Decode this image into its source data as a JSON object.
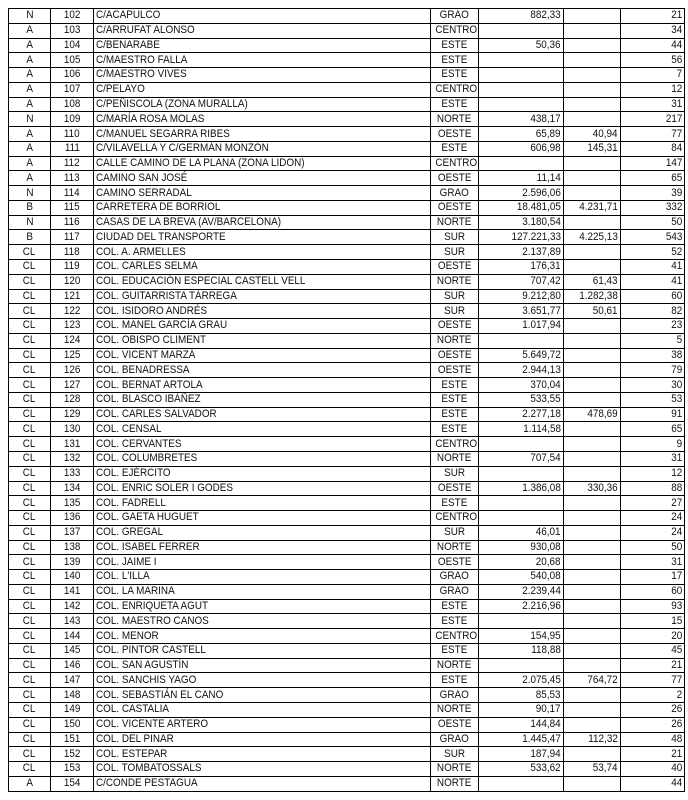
{
  "rows": [
    [
      "N",
      "102",
      "C/ACAPULCO",
      "GRAO",
      "882,33",
      "",
      "21"
    ],
    [
      "A",
      "103",
      "C/ARRUFAT ALONSO",
      "CENTRO",
      "",
      "",
      "34"
    ],
    [
      "A",
      "104",
      "C/BENARABE",
      "ESTE",
      "50,36",
      "",
      "44"
    ],
    [
      "A",
      "105",
      "C/MAESTRO FALLA",
      "ESTE",
      "",
      "",
      "56"
    ],
    [
      "A",
      "106",
      "C/MAESTRO VIVES",
      "ESTE",
      "",
      "",
      "7"
    ],
    [
      "A",
      "107",
      "C/PELAYO",
      "CENTRO",
      "",
      "",
      "12"
    ],
    [
      "A",
      "108",
      "C/PEÑISCOLA (ZONA MURALLA)",
      "ESTE",
      "",
      "",
      "31"
    ],
    [
      "N",
      "109",
      "C/MARÍA ROSA MOLAS",
      "NORTE",
      "438,17",
      "",
      "217"
    ],
    [
      "A",
      "110",
      "C/MANUEL SEGARRA RIBES",
      "OESTE",
      "65,89",
      "40,94",
      "77"
    ],
    [
      "A",
      "111",
      "C/VILAVELLA Y C/GERMÁN MONZÓN",
      "ESTE",
      "606,98",
      "145,31",
      "84"
    ],
    [
      "A",
      "112",
      "CALLE CAMINO DE LA PLANA (ZONA LIDON)",
      "CENTRO",
      "",
      "",
      "147"
    ],
    [
      "A",
      "113",
      "CAMINO SAN JOSÉ",
      "OESTE",
      "11,14",
      "",
      "65"
    ],
    [
      "N",
      "114",
      "CAMINO SERRADAL",
      "GRAO",
      "2.596,06",
      "",
      "39"
    ],
    [
      "B",
      "115",
      "CARRETERA DE BORRIOL",
      "OESTE",
      "18.481,05",
      "4.231,71",
      "332"
    ],
    [
      "N",
      "116",
      "CASAS DE LA BREVA (AV/BARCELONA)",
      "NORTE",
      "3.180,54",
      "",
      "50"
    ],
    [
      "B",
      "117",
      "CIUDAD DEL TRANSPORTE",
      "SUR",
      "127.221,33",
      "4.225,13",
      "543"
    ],
    [
      "CL",
      "118",
      "COL. A. ARMELLES",
      "SUR",
      "2.137,89",
      "",
      "52"
    ],
    [
      "CL",
      "119",
      "COL. CARLES SELMA",
      "OESTE",
      "176,31",
      "",
      "41"
    ],
    [
      "CL",
      "120",
      "COL. EDUCACIÓN ESPECIAL CASTELL VELL",
      "NORTE",
      "707,42",
      "61,43",
      "41"
    ],
    [
      "CL",
      "121",
      "COL. GUITARRISTA TÁRREGA",
      "SUR",
      "9.212,80",
      "1.282,38",
      "60"
    ],
    [
      "CL",
      "122",
      "COL. ISIDORO ANDRÉS",
      "SUR",
      "3.651,77",
      "50,61",
      "82"
    ],
    [
      "CL",
      "123",
      "COL. MANEL GARCÍA GRAU",
      "OESTE",
      "1.017,94",
      "",
      "23"
    ],
    [
      "CL",
      "124",
      "COL. OBISPO CLIMENT",
      "NORTE",
      "",
      "",
      "5"
    ],
    [
      "CL",
      "125",
      "COL. VICENT MARZÁ",
      "OESTE",
      "5.649,72",
      "",
      "38"
    ],
    [
      "CL",
      "126",
      "COL. BENADRESSA",
      "OESTE",
      "2.944,13",
      "",
      "79"
    ],
    [
      "CL",
      "127",
      "COL. BERNAT ARTOLA",
      "ESTE",
      "370,04",
      "",
      "30"
    ],
    [
      "CL",
      "128",
      "COL. BLASCO IBÁÑEZ",
      "ESTE",
      "533,55",
      "",
      "53"
    ],
    [
      "CL",
      "129",
      "COL. CARLES SALVADOR",
      "ESTE",
      "2.277,18",
      "478,69",
      "91"
    ],
    [
      "CL",
      "130",
      "COL. CENSAL",
      "ESTE",
      "1.114,58",
      "",
      "65"
    ],
    [
      "CL",
      "131",
      "COL. CERVANTES",
      "CENTRO",
      "",
      "",
      "9"
    ],
    [
      "CL",
      "132",
      "COL. COLUMBRETES",
      "NORTE",
      "707,54",
      "",
      "31"
    ],
    [
      "CL",
      "133",
      "COL. EJÉRCITO",
      "SUR",
      "",
      "",
      "12"
    ],
    [
      "CL",
      "134",
      "COL. ENRIC SOLER I GODES",
      "OESTE",
      "1.386,08",
      "330,36",
      "88"
    ],
    [
      "CL",
      "135",
      "COL. FADRELL",
      "ESTE",
      "",
      "",
      "27"
    ],
    [
      "CL",
      "136",
      "COL. GAETA HUGUET",
      "CENTRO",
      "",
      "",
      "24"
    ],
    [
      "CL",
      "137",
      "COL. GREGAL",
      "SUR",
      "46,01",
      "",
      "24"
    ],
    [
      "CL",
      "138",
      "COL. ISABEL FERRER",
      "NORTE",
      "930,08",
      "",
      "50"
    ],
    [
      "CL",
      "139",
      "COL. JAIME I",
      "OESTE",
      "20,68",
      "",
      "31"
    ],
    [
      "CL",
      "140",
      "COL. L'ILLA",
      "GRAO",
      "540,08",
      "",
      "17"
    ],
    [
      "CL",
      "141",
      "COL. LA MARINA",
      "GRAO",
      "2.239,44",
      "",
      "60"
    ],
    [
      "CL",
      "142",
      "COL. ENRIQUETA AGUT",
      "ESTE",
      "2.216,96",
      "",
      "93"
    ],
    [
      "CL",
      "143",
      "COL. MAESTRO CANOS",
      "ESTE",
      "",
      "",
      "15"
    ],
    [
      "CL",
      "144",
      "COL. MENOR",
      "CENTRO",
      "154,95",
      "",
      "20"
    ],
    [
      "CL",
      "145",
      "COL. PINTOR CASTELL",
      "ESTE",
      "118,88",
      "",
      "45"
    ],
    [
      "CL",
      "146",
      "COL. SAN AGUSTÍN",
      "NORTE",
      "",
      "",
      "21"
    ],
    [
      "CL",
      "147",
      "COL. SANCHIS YAGO",
      "ESTE",
      "2.075,45",
      "764,72",
      "77"
    ],
    [
      "CL",
      "148",
      "COL. SEBASTIÁN EL CANO",
      "GRAO",
      "85,53",
      "",
      "2"
    ],
    [
      "CL",
      "149",
      "COL. CASTALIA",
      "NORTE",
      "90,17",
      "",
      "26"
    ],
    [
      "CL",
      "150",
      "COL. VICENTE ARTERO",
      "OESTE",
      "144,84",
      "",
      "26"
    ],
    [
      "CL",
      "151",
      "COL. DEL PINAR",
      "GRAO",
      "1.445,47",
      "112,32",
      "48"
    ],
    [
      "CL",
      "152",
      "COL. ESTEPAR",
      "SUR",
      "187,94",
      "",
      "21"
    ],
    [
      "CL",
      "153",
      "COL. TOMBATOSSALS",
      "NORTE",
      "533,62",
      "53,74",
      "40"
    ],
    [
      "A",
      "154",
      "C/CONDE PESTAGUA",
      "NORTE",
      "",
      "",
      "44"
    ]
  ]
}
